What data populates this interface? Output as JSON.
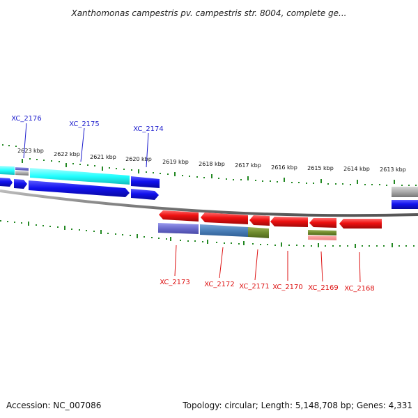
{
  "title": "Xanthomonas campestris pv. campestris str. 8004, complete ge...",
  "footer": {
    "accession": "Accession: NC_007086",
    "summary": "Topology: circular; Length: 5,148,708 bp; Genes: 4,331"
  },
  "ticks": {
    "top": [
      "2623 kbp",
      "2622 kbp",
      "2621 kbp",
      "2620 kbp",
      "2619 kbp",
      "2618 kbp",
      "2617 kbp",
      "2616 kbp",
      "2615 kbp",
      "2614 kbp",
      "2613 kbp"
    ]
  },
  "genes": {
    "forward": [
      "XC_2176",
      "XC_2175",
      "XC_2174"
    ],
    "reverse": [
      "XC_2173",
      "XC_2172",
      "XC_2171",
      "XC_2170",
      "XC_2169",
      "XC_2168"
    ]
  },
  "colors": {
    "forward_label": "#1a1acc",
    "reverse_label": "#dd1111",
    "forward_gene": "#1010ee",
    "reverse_gene": "#ee1111",
    "cyan_feature": "#22ffff",
    "backbone": "#888888",
    "tick": "#228822"
  }
}
